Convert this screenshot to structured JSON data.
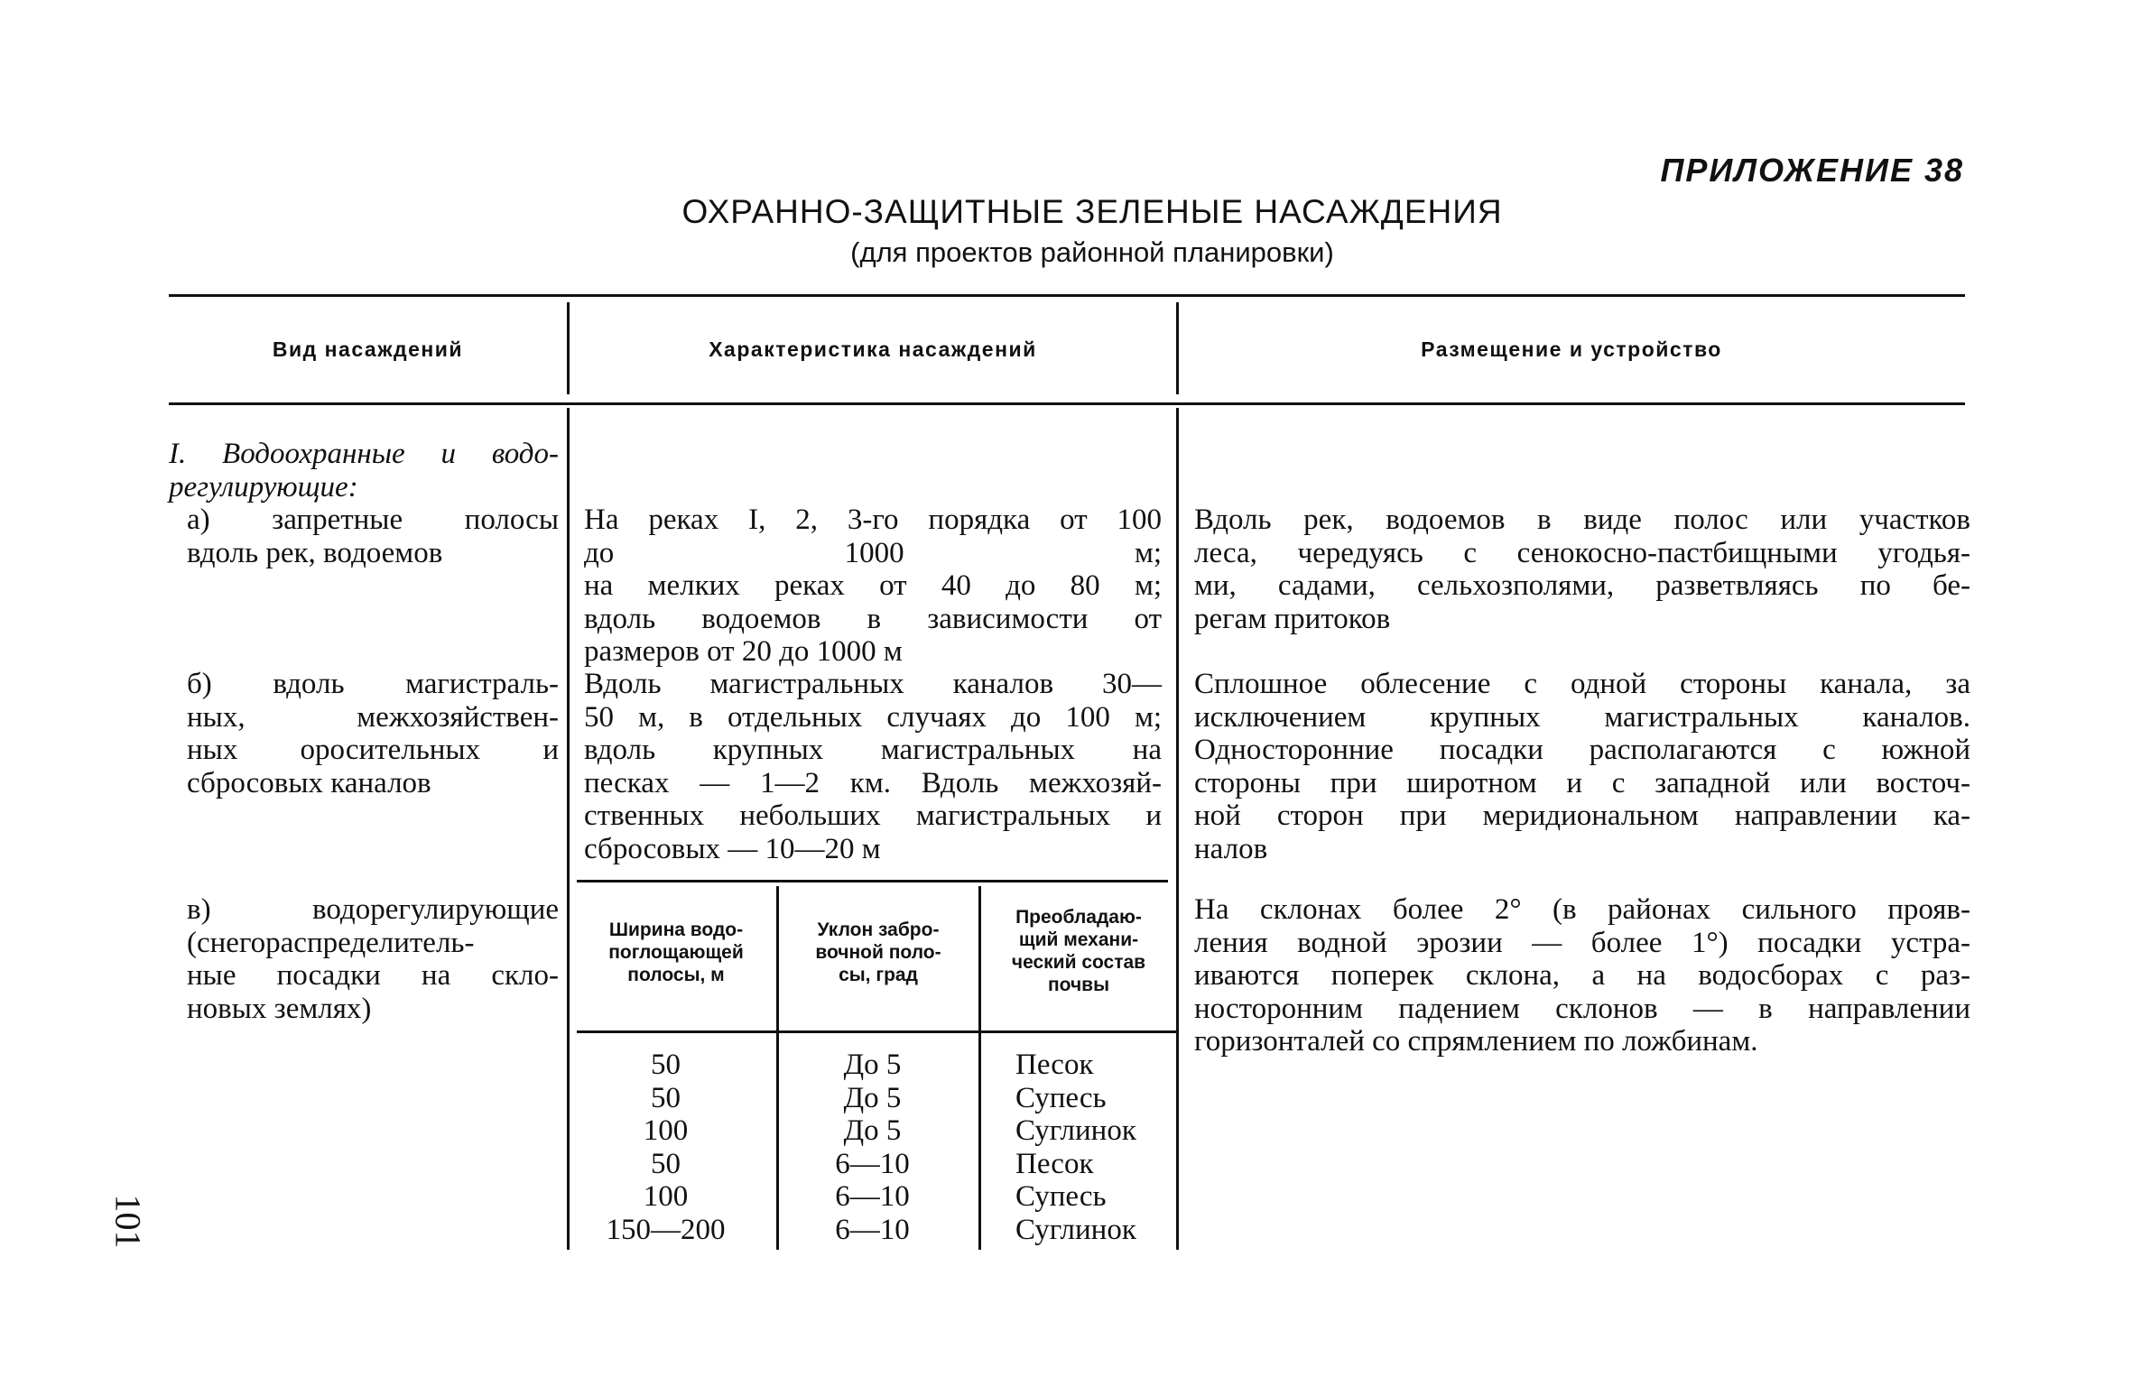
{
  "appendix_label": "ПРИЛОЖЕНИЕ 38",
  "title": "ОХРАННО-ЗАЩИТНЫЕ ЗЕЛЕНЫЕ НАСАЖДЕНИЯ",
  "subtitle": "(для проектов районной планировки)",
  "table": {
    "headers": [
      "Вид насаждений",
      "Характеристика насаждений",
      "Размещение и устройство"
    ],
    "section_title": [
      "I. Водоохранные и водо-",
      "регулирующие:"
    ],
    "rows": [
      {
        "kind": [
          "а) запретные полосы",
          "вдоль рек, водоемов"
        ],
        "characteristics": [
          "На реках I, 2, 3-го порядка от 100",
          "до 1000 м;",
          "на мелких реках от 40 до 80 м;",
          "вдоль водоемов в зависимости от",
          "размеров от 20 до 1000 м"
        ],
        "placement": [
          "Вдоль рек, водоемов в виде полос или участков",
          "леса, чередуясь с сенокосно-пастбищными угодья-",
          "ми, садами, сельхозполями, разветвляясь по бе-",
          "регам притоков"
        ]
      },
      {
        "kind": [
          "б) вдоль магистраль-",
          "ных, межхозяйствен-",
          "ных оросительных и",
          "сбросовых каналов"
        ],
        "characteristics": [
          "Вдоль магистральных каналов 30—",
          "50 м, в отдельных случаях до 100 м;",
          "вдоль крупных магистральных на",
          "песках — 1—2 км. Вдоль межхозяй-",
          "ственных небольших магистральных и",
          "сбросовых — 10—20 м"
        ],
        "placement": [
          "Сплошное облесение с одной стороны канала, за",
          "исключением крупных магистральных каналов.",
          "Односторонние посадки располагаются с южной",
          "стороны при широтном и с западной или восточ-",
          "ной сторон при меридиональном направлении ка-",
          "налов"
        ]
      },
      {
        "kind": [
          "в) водорегулирующие",
          "(снегораспределитель-",
          "ные посадки на скло-",
          "новых землях)"
        ],
        "placement": [
          "На склонах более 2° (в районах сильного прояв-",
          "ления водной эрозии — более 1°) посадки устра-",
          "иваются поперек склона, а на водосборах с раз-",
          "носторонним падением склонов — в направлении",
          "горизонталей со спрямлением по ложбинам."
        ]
      }
    ],
    "subtable": {
      "headers": [
        [
          "Ширина водо-",
          "поглощающей",
          "полосы, м"
        ],
        [
          "Уклон забро-",
          "вочной поло-",
          "сы, град"
        ],
        [
          "Преобладаю-",
          "щий механи-",
          "ческий состав",
          "почвы"
        ]
      ],
      "width": [
        "50",
        "50",
        "100",
        "50",
        "100",
        "150—200"
      ],
      "slope": [
        "До 5",
        "До 5",
        "До 5",
        "6—10",
        "6—10",
        "6—10"
      ],
      "soil": [
        "Песок",
        "Супесь",
        "Суглинок",
        "Песок",
        "Супесь",
        "Суглинок"
      ]
    }
  },
  "page_number": "101"
}
